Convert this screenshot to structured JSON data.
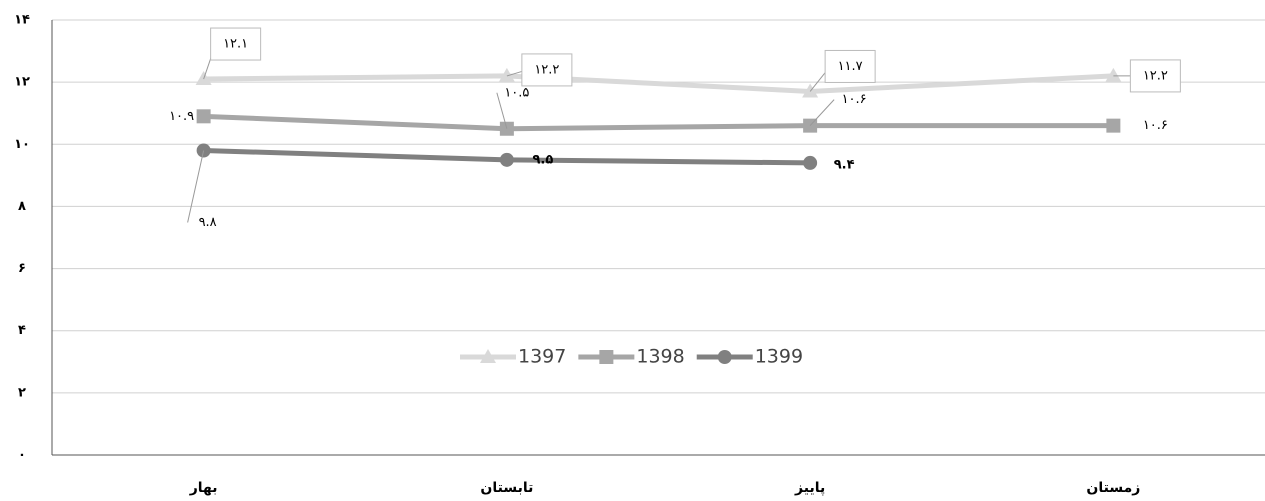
{
  "chart_data": {
    "type": "line",
    "categories": [
      "بهار",
      "تابستان",
      "پاییز",
      "زمستان"
    ],
    "series": [
      {
        "name": "1397",
        "color": "#d9d9d9",
        "marker": "triangle",
        "values": [
          12.1,
          12.2,
          11.7,
          12.2
        ],
        "value_labels": [
          "۱۲.۱",
          "۱۲.۲",
          "۱۱.۷",
          "۱۲.۲"
        ]
      },
      {
        "name": "1398",
        "color": "#a6a6a6",
        "marker": "square",
        "values": [
          10.9,
          10.5,
          10.6,
          10.6
        ],
        "value_labels": [
          "۱۰.۹",
          "۱۰.۵",
          "۱۰.۶",
          "۱۰.۶"
        ]
      },
      {
        "name": "1399",
        "color": "#808080",
        "marker": "circle",
        "values": [
          9.8,
          9.5,
          9.4,
          null
        ],
        "value_labels": [
          "۹.۸",
          "۹.۵",
          "۹.۴",
          null
        ]
      }
    ],
    "ylim": [
      0,
      14
    ],
    "yticks": [
      {
        "value": 0,
        "label": "۰"
      },
      {
        "value": 2,
        "label": "۲"
      },
      {
        "value": 4,
        "label": "۴"
      },
      {
        "value": 6,
        "label": "۶"
      },
      {
        "value": 8,
        "label": "۸"
      },
      {
        "value": 10,
        "label": "۱۰"
      },
      {
        "value": 12,
        "label": "۱۲"
      },
      {
        "value": 14,
        "label": "۱۴"
      }
    ],
    "grid": true,
    "legend": "center"
  }
}
